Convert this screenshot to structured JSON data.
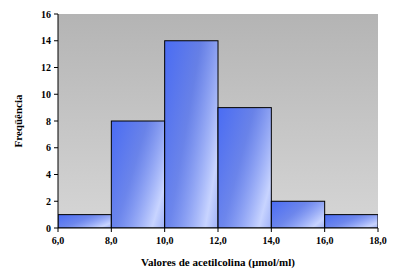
{
  "chart_data": {
    "type": "histogram",
    "x_label": "Valores de acetilcolina (µmol/ml)",
    "y_label": "Freqüência",
    "bins": [
      6,
      8,
      10,
      12,
      14,
      16,
      18
    ],
    "values": [
      1,
      8,
      14,
      9,
      2,
      1
    ],
    "color": "#4a6cf4",
    "xlim": [
      6,
      18
    ],
    "xticks": [
      {
        "value": 6,
        "label": "6,0"
      },
      {
        "value": 8,
        "label": "8,0"
      },
      {
        "value": 10,
        "label": "10,0"
      },
      {
        "value": 12,
        "label": "12,0"
      },
      {
        "value": 14,
        "label": "14,0"
      },
      {
        "value": 16,
        "label": "16,0"
      },
      {
        "value": 18,
        "label": "18,0"
      }
    ],
    "ylim": [
      0,
      16
    ],
    "yticks": [
      0,
      2,
      4,
      6,
      8,
      10,
      12,
      14,
      16
    ],
    "grid": false
  }
}
